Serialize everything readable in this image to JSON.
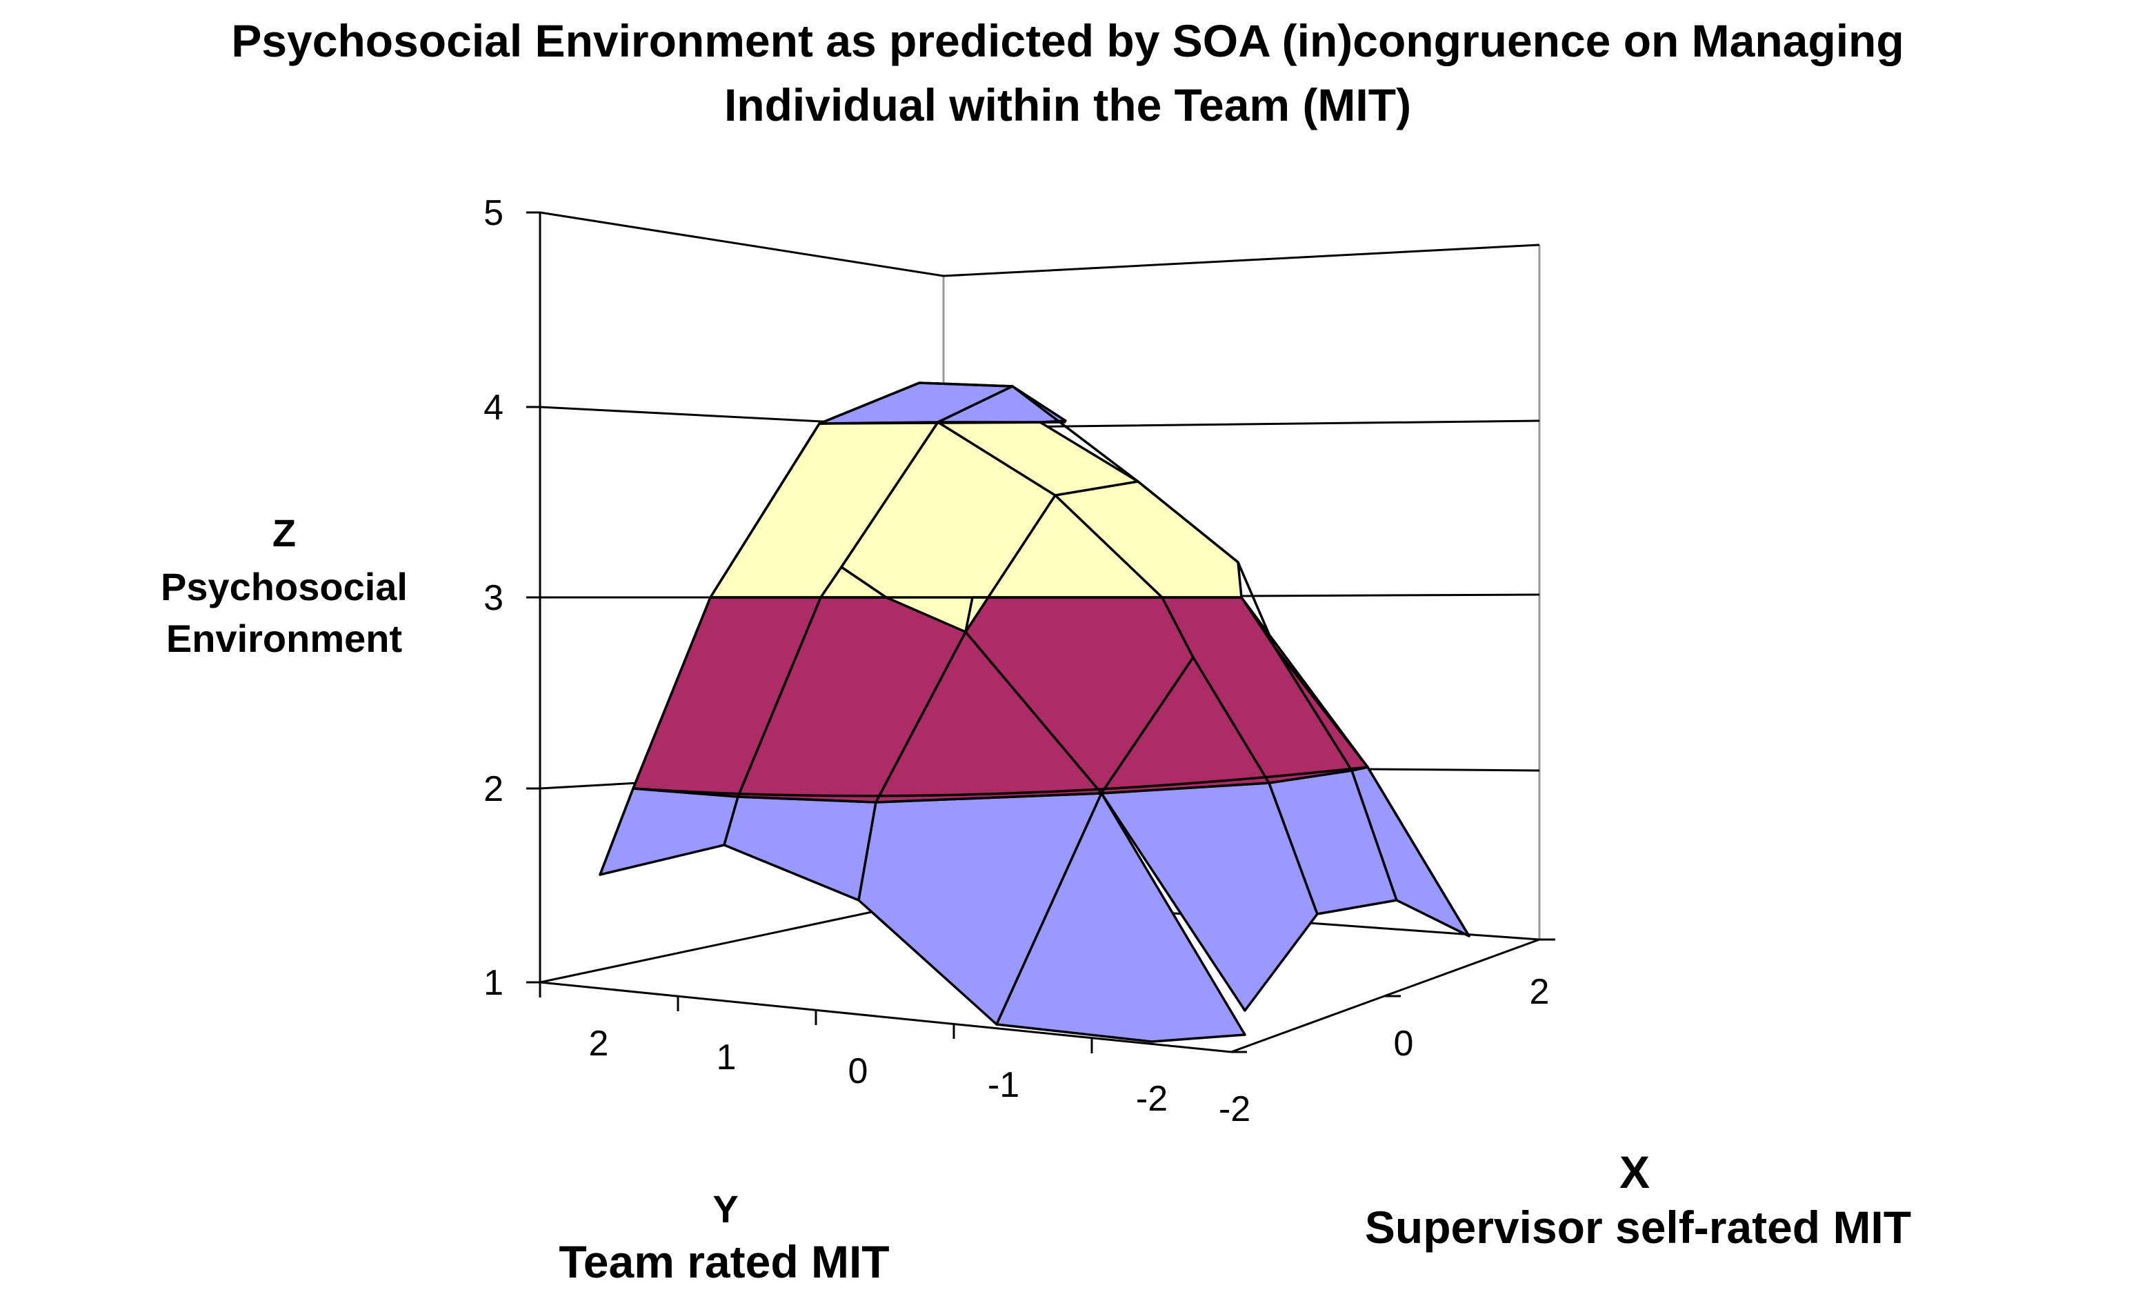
{
  "chart_data": {
    "type": "surface",
    "title": "Psychosocial Environment as predicted by SOA (in)congruence on Managing",
    "title_line2": "Individual within  the Team (MIT)",
    "zlabel": "Z",
    "zlabel_line1": "Psychosocial",
    "zlabel_line2": "Environment",
    "ylabel": "Y",
    "ylabel_line2": "Team rated MIT",
    "xlabel": "X",
    "xlabel_line2": "Supervisor self-rated MIT",
    "zlim": [
      1,
      5
    ],
    "z_ticks": [
      "1",
      "2",
      "3",
      "4",
      "5"
    ],
    "y_ticks": [
      "2",
      "1",
      "0",
      "-1",
      "-2"
    ],
    "x_ticks": [
      "-2",
      "0",
      "2"
    ],
    "x": [
      -2,
      -1,
      0,
      1,
      2
    ],
    "y": [
      2,
      1,
      0,
      -1,
      -2
    ],
    "z_front_row_x_neg2": [
      1.55,
      1.7,
      1.4,
      1.0,
      0.95
    ],
    "bands": [
      {
        "range": "1-2",
        "color": "#9999ff"
      },
      {
        "range": "2-3",
        "color": "#ae2c65"
      },
      {
        "range": "3-4",
        "color": "#ffffc0"
      },
      {
        "range": "4-5",
        "color": "#9999ff"
      }
    ],
    "grid": true
  }
}
